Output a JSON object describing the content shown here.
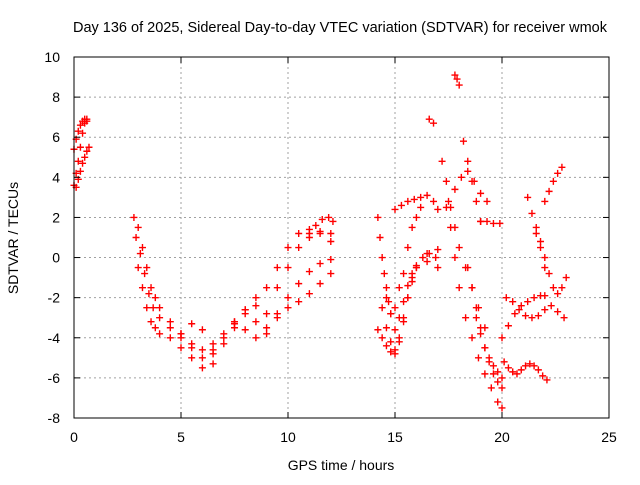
{
  "chart_data": {
    "type": "scatter",
    "title": "Day 136 of 2025, Sidereal Day-to-day VTEC variation (SDTVAR) for receiver wmok",
    "xlabel": "GPS time / hours",
    "ylabel": "SDTVAR / TECUs",
    "xlim": [
      0,
      25
    ],
    "ylim": [
      -8,
      10
    ],
    "xticks": [
      0,
      5,
      10,
      15,
      20,
      25
    ],
    "yticks": [
      -8,
      -6,
      -4,
      -2,
      0,
      2,
      4,
      6,
      8,
      10
    ],
    "grid": true,
    "marker": "+",
    "colors": {
      "series": "#ff0000",
      "grid": "#a0a0a0",
      "axis": "#000000"
    },
    "series": [
      {
        "name": "",
        "x": [
          0.0,
          0.1,
          0.2,
          0.3,
          0.4,
          0.5,
          0.6
        ],
        "y": [
          3.6,
          4.2,
          4.8,
          5.5,
          6.2,
          6.7,
          6.9
        ]
      },
      {
        "name": "",
        "x": [
          0.0,
          0.1,
          0.2,
          0.3,
          0.4,
          0.5,
          0.6
        ],
        "y": [
          5.4,
          5.9,
          6.3,
          6.6,
          6.8,
          6.9,
          6.8
        ]
      },
      {
        "name": "",
        "x": [
          0.1,
          0.2,
          0.3,
          0.4,
          0.5,
          0.6,
          0.7
        ],
        "y": [
          3.5,
          3.9,
          4.3,
          4.7,
          5.0,
          5.3,
          5.5
        ]
      },
      {
        "name": "",
        "x": [
          2.8,
          3.0,
          3.2,
          3.4,
          3.6,
          3.8,
          4.0,
          4.5,
          5.0,
          5.5,
          6.0,
          6.5,
          7.0,
          7.5
        ],
        "y": [
          2.0,
          1.5,
          0.5,
          -0.5,
          -1.5,
          -2.0,
          -2.5,
          -3.2,
          -3.8,
          -4.3,
          -4.6,
          -4.8,
          -4.3,
          -3.5
        ]
      },
      {
        "name": "",
        "x": [
          2.9,
          3.1,
          3.3,
          3.5,
          3.7,
          4.0,
          4.5,
          5.0,
          5.5,
          6.0,
          6.5
        ],
        "y": [
          1.0,
          0.2,
          -0.8,
          -1.8,
          -2.5,
          -3.0,
          -3.5,
          -4.0,
          -4.5,
          -5.0,
          -5.3
        ]
      },
      {
        "name": "",
        "x": [
          3.0,
          3.2,
          3.4,
          3.6,
          3.8,
          4.0,
          4.5,
          5.0,
          5.5,
          6.0
        ],
        "y": [
          -0.5,
          -1.5,
          -2.5,
          -3.2,
          -3.5,
          -3.8,
          -4.0,
          -4.5,
          -5.0,
          -5.5
        ]
      },
      {
        "name": "",
        "x": [
          5.0,
          5.5,
          6.0,
          6.5
        ],
        "y": [
          -3.8,
          -3.3,
          -3.6,
          -4.3
        ]
      },
      {
        "name": "",
        "x": [
          6.5,
          7.0,
          7.5,
          8.0,
          8.5,
          9.0,
          9.5,
          10.0,
          10.5,
          11.0,
          11.5,
          12.0
        ],
        "y": [
          -4.6,
          -4.0,
          -3.3,
          -2.8,
          -3.2,
          -3.8,
          -3.0,
          -2.5,
          -2.2,
          -1.8,
          -1.3,
          -0.8
        ]
      },
      {
        "name": "",
        "x": [
          7.0,
          7.5,
          8.0,
          8.5,
          9.0,
          9.5,
          10.0,
          10.5,
          11.0,
          11.5,
          12.0
        ],
        "y": [
          -3.8,
          -3.2,
          -2.6,
          -2.4,
          -2.8,
          -1.5,
          -0.5,
          0.5,
          1.0,
          1.3,
          1.2
        ]
      },
      {
        "name": "",
        "x": [
          8.0,
          8.5,
          9.0,
          9.5,
          10.0,
          10.5,
          11.0,
          11.5,
          12.0
        ],
        "y": [
          -2.6,
          -2.0,
          -1.5,
          -0.5,
          0.5,
          1.2,
          1.4,
          1.2,
          0.8
        ]
      },
      {
        "name": "",
        "x": [
          7.5,
          8.0,
          8.5,
          9.0,
          9.5,
          10.0,
          10.5,
          11.0,
          11.5,
          12.0
        ],
        "y": [
          -3.2,
          -3.6,
          -4.0,
          -3.5,
          -2.8,
          -2.0,
          -1.3,
          -0.7,
          -0.3,
          -0.1
        ]
      },
      {
        "name": "",
        "x": [
          11.0,
          11.3,
          11.6,
          11.9,
          12.1
        ],
        "y": [
          1.2,
          1.6,
          1.9,
          2.0,
          1.8
        ]
      },
      {
        "name": "",
        "x": [
          14.2,
          14.3,
          14.4,
          14.5,
          14.6,
          14.7,
          14.8
        ],
        "y": [
          2.0,
          1.0,
          0.0,
          -0.8,
          -1.5,
          -2.2,
          -2.8
        ]
      },
      {
        "name": "",
        "x": [
          14.2,
          14.4,
          14.6,
          14.8,
          15.0,
          15.2,
          15.4,
          15.6,
          15.8,
          16.0,
          16.3,
          16.6,
          16.9
        ],
        "y": [
          -3.6,
          -4.0,
          -4.4,
          -4.7,
          -4.6,
          -4.0,
          -3.0,
          -2.0,
          -1.0,
          -0.5,
          0.0,
          0.2,
          0.0
        ]
      },
      {
        "name": "",
        "x": [
          14.4,
          14.6,
          14.8,
          15.0,
          15.2,
          15.4,
          15.6,
          15.8,
          16.0,
          16.5,
          17.0
        ],
        "y": [
          -2.5,
          -3.5,
          -4.2,
          -4.8,
          -4.2,
          -3.2,
          -2.0,
          -1.2,
          -0.5,
          0.2,
          0.4
        ]
      },
      {
        "name": "",
        "x": [
          14.6,
          14.8,
          15.0,
          15.2,
          15.4,
          15.6,
          15.8,
          16.0,
          16.5,
          17.0
        ],
        "y": [
          -2.0,
          -2.8,
          -3.6,
          -3.0,
          -2.2,
          -1.4,
          -0.8,
          -0.4,
          -0.2,
          -0.5
        ]
      },
      {
        "name": "",
        "x": [
          15.0,
          15.3,
          15.6,
          15.9,
          16.2,
          16.5,
          16.8,
          17.0
        ],
        "y": [
          2.4,
          2.6,
          2.8,
          2.9,
          3.0,
          3.1,
          2.8,
          2.4
        ]
      },
      {
        "name": "",
        "x": [
          15.0,
          15.2,
          15.4,
          15.6,
          15.8,
          16.0,
          16.2
        ],
        "y": [
          -2.5,
          -1.5,
          -0.8,
          0.5,
          1.5,
          2.0,
          2.5
        ]
      },
      {
        "name": "",
        "x": [
          16.6,
          16.8
        ],
        "y": [
          6.9,
          6.7
        ]
      },
      {
        "name": "",
        "x": [
          17.2,
          17.4,
          17.6,
          17.8,
          18.0,
          18.3,
          18.6,
          18.9,
          19.2
        ],
        "y": [
          4.8,
          3.8,
          2.5,
          1.5,
          0.5,
          -0.5,
          -1.5,
          -2.5,
          -3.5
        ]
      },
      {
        "name": "",
        "x": [
          17.4,
          17.6,
          17.8,
          18.0,
          18.3,
          18.6,
          18.9,
          19.2,
          19.5,
          19.8,
          20.0
        ],
        "y": [
          2.5,
          1.5,
          0.0,
          -1.5,
          -3.0,
          -4.0,
          -5.0,
          -5.8,
          -6.5,
          -7.2,
          -7.5
        ]
      },
      {
        "name": "",
        "x": [
          17.5,
          17.8,
          18.1,
          18.4,
          18.7,
          19.0,
          19.3
        ],
        "y": [
          2.8,
          3.4,
          4.0,
          4.3,
          3.8,
          3.2,
          2.8
        ]
      },
      {
        "name": "",
        "x": [
          17.8,
          17.9,
          18.0
        ],
        "y": [
          9.1,
          8.9,
          8.6
        ]
      },
      {
        "name": "",
        "x": [
          18.2,
          18.4,
          18.6,
          18.8,
          19.0
        ],
        "y": [
          5.8,
          4.8,
          3.8,
          2.8,
          1.8
        ]
      },
      {
        "name": "",
        "x": [
          18.4,
          18.6,
          18.8,
          19.0,
          19.2,
          19.4,
          19.6,
          19.8,
          20.0
        ],
        "y": [
          -0.5,
          -1.5,
          -2.5,
          -3.5,
          -4.5,
          -5.2,
          -5.8,
          -6.2,
          -6.5
        ]
      },
      {
        "name": "",
        "x": [
          18.8,
          19.0,
          19.2,
          19.4,
          19.6,
          19.8,
          20.0
        ],
        "y": [
          -3.0,
          -3.8,
          -4.5,
          -5.0,
          -5.4,
          -5.7,
          -6.0
        ]
      },
      {
        "name": "",
        "x": [
          19.0,
          19.3,
          19.6,
          19.9
        ],
        "y": [
          1.8,
          1.8,
          1.7,
          1.7
        ]
      },
      {
        "name": "",
        "x": [
          20.1,
          20.3,
          20.5,
          20.7,
          20.9,
          21.1,
          21.3,
          21.5,
          21.7,
          21.9,
          22.1
        ],
        "y": [
          -5.2,
          -5.5,
          -5.7,
          -5.8,
          -5.6,
          -5.4,
          -5.3,
          -5.4,
          -5.6,
          -5.9,
          -6.1
        ]
      },
      {
        "name": "",
        "x": [
          20.0,
          20.3,
          20.6,
          20.9,
          21.2,
          21.5,
          21.8,
          22.0
        ],
        "y": [
          -4.0,
          -3.4,
          -2.8,
          -2.4,
          -2.2,
          -2.0,
          -1.9,
          -1.9
        ]
      },
      {
        "name": "",
        "x": [
          20.2,
          20.5,
          20.8,
          21.1,
          21.4,
          21.7,
          22.0,
          22.3,
          22.6,
          22.9
        ],
        "y": [
          -2.0,
          -2.2,
          -2.6,
          -2.9,
          -3.0,
          -2.9,
          -2.6,
          -2.4,
          -2.7,
          -3.0
        ]
      },
      {
        "name": "",
        "x": [
          21.2,
          21.4,
          21.6,
          21.8,
          22.0,
          22.2,
          22.4,
          22.6,
          22.8,
          23.0
        ],
        "y": [
          3.0,
          2.2,
          1.5,
          0.8,
          0.0,
          -0.8,
          -1.5,
          -1.8,
          -1.5,
          -1.0
        ]
      },
      {
        "name": "",
        "x": [
          21.6,
          21.8,
          22.0
        ],
        "y": [
          1.2,
          0.5,
          -0.5
        ]
      },
      {
        "name": "",
        "x": [
          22.0,
          22.2,
          22.4,
          22.6,
          22.8
        ],
        "y": [
          2.8,
          3.3,
          3.8,
          4.2,
          4.5
        ]
      }
    ]
  }
}
